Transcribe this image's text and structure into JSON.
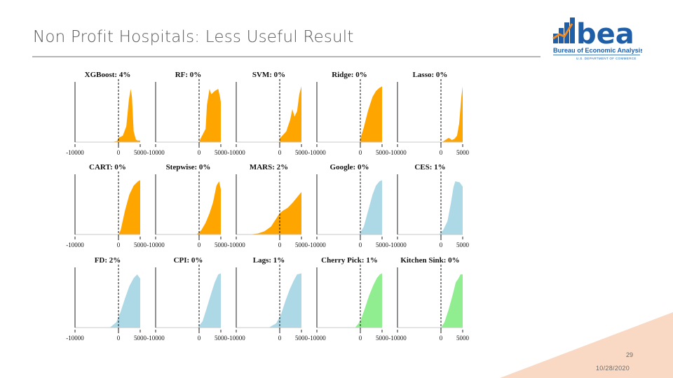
{
  "slide": {
    "title": "Non Profit Hospitals: Less Useful Result",
    "page_number": "29",
    "date": "10/28/2020"
  },
  "logo": {
    "wordmark": "bea",
    "name": "Bureau of Economic Analysis",
    "department": "U.S. DEPARTMENT OF COMMERCE"
  },
  "colors": {
    "orange": "#FFA500",
    "blue": "#ADD8E6",
    "green": "#90EE90",
    "brand_blue": "#1f5fa8",
    "brand_orange": "#f08a24",
    "corner": "#f9d9c4"
  },
  "chart_data": {
    "type": "area",
    "layout": "3 rows x 5 columns of density plots",
    "xlim": [
      -10000,
      5000
    ],
    "xticks": [
      -10000,
      0,
      5000
    ],
    "reference_line_x": 0,
    "panels": [
      {
        "method": "XGBoost",
        "title": "XGBoost: 4%",
        "color": "orange",
        "x": [
          -10000,
          -1500,
          -300,
          0,
          1000,
          1800,
          2400,
          2800,
          3100,
          3500,
          4000,
          4400,
          5000
        ],
        "y": [
          0,
          0,
          0.02,
          0.08,
          0.12,
          0.3,
          0.8,
          1.0,
          0.85,
          0.2,
          0.05,
          0.03,
          0.03
        ]
      },
      {
        "method": "RF",
        "title": "RF: 0%",
        "color": "orange",
        "x": [
          -10000,
          0,
          300,
          1500,
          1800,
          2400,
          2800,
          3600,
          4400,
          4800,
          5000
        ],
        "y": [
          0,
          0,
          0.06,
          0.25,
          0.7,
          1.0,
          0.9,
          0.96,
          1.0,
          0.85,
          0.75
        ]
      },
      {
        "method": "SVM",
        "title": "SVM: 0%",
        "color": "orange",
        "x": [
          -10000,
          -100,
          0,
          700,
          1500,
          2400,
          2900,
          3400,
          4000,
          4500,
          5000
        ],
        "y": [
          0,
          0,
          0.07,
          0.13,
          0.2,
          0.42,
          0.62,
          0.48,
          0.58,
          0.9,
          1.05
        ]
      },
      {
        "method": "Ridge",
        "title": "Ridge: 0%",
        "color": "orange",
        "x": [
          -10000,
          -200,
          0,
          800,
          1800,
          2800,
          3600,
          4400,
          5000
        ],
        "y": [
          0,
          0,
          0.06,
          0.28,
          0.6,
          0.85,
          0.96,
          1.02,
          1.05
        ]
      },
      {
        "method": "Lasso",
        "title": "Lasso: 0%",
        "color": "orange",
        "x": [
          -10000,
          300,
          1000,
          1800,
          2500,
          3100,
          3700,
          4200,
          4700,
          5000
        ],
        "y": [
          0,
          0,
          0.04,
          0.08,
          0.04,
          0.06,
          0.12,
          0.35,
          0.85,
          1.05
        ]
      },
      {
        "method": "CART",
        "title": "CART: 0%",
        "color": "orange",
        "x": [
          -10000,
          0,
          500,
          1500,
          2500,
          3500,
          4500,
          5000
        ],
        "y": [
          0,
          0,
          0.08,
          0.45,
          0.75,
          0.92,
          1.0,
          1.02
        ]
      },
      {
        "method": "Stepwise",
        "title": "Stepwise: 0%",
        "color": "orange",
        "x": [
          -10000,
          -600,
          500,
          1500,
          2400,
          3200,
          4000,
          4600,
          5000
        ],
        "y": [
          0,
          0,
          0.08,
          0.22,
          0.4,
          0.6,
          0.92,
          1.0,
          0.85
        ]
      },
      {
        "method": "MARS",
        "title": "MARS: 2%",
        "color": "orange",
        "x": [
          -10000,
          -7000,
          -5000,
          -3500,
          -2000,
          -800,
          0,
          800,
          1800,
          3000,
          4200,
          5000
        ],
        "y": [
          0,
          0,
          0.02,
          0.06,
          0.15,
          0.3,
          0.4,
          0.45,
          0.5,
          0.6,
          0.72,
          0.8
        ]
      },
      {
        "method": "Google",
        "title": "Google: 0%",
        "color": "blue",
        "x": [
          -10000,
          -300,
          800,
          1800,
          2800,
          3600,
          4400,
          5000
        ],
        "y": [
          0,
          0,
          0.15,
          0.45,
          0.75,
          0.92,
          1.0,
          1.02
        ]
      },
      {
        "method": "CES",
        "title": "CES: 1%",
        "color": "blue",
        "x": [
          -10000,
          -500,
          500,
          1500,
          2300,
          2900,
          3300,
          4300,
          5000
        ],
        "y": [
          0,
          0,
          0.08,
          0.25,
          0.6,
          0.9,
          1.0,
          0.98,
          0.9
        ]
      },
      {
        "method": "FD",
        "title": "FD: 2%",
        "color": "blue",
        "x": [
          -10000,
          -2000,
          -500,
          500,
          1500,
          2500,
          3500,
          4300,
          5000
        ],
        "y": [
          0,
          0,
          0.1,
          0.3,
          0.55,
          0.78,
          0.93,
          1.0,
          0.92
        ]
      },
      {
        "method": "CPI",
        "title": "CPI: 0%",
        "color": "blue",
        "x": [
          -10000,
          -300,
          800,
          1800,
          2800,
          3600,
          4400,
          5000
        ],
        "y": [
          0,
          0,
          0.12,
          0.38,
          0.65,
          0.85,
          1.0,
          1.02
        ]
      },
      {
        "method": "Lags",
        "title": "Lags: 1%",
        "color": "blue",
        "x": [
          -10000,
          -2500,
          -800,
          300,
          1300,
          2300,
          3200,
          4000,
          5000
        ],
        "y": [
          0,
          0,
          0.08,
          0.25,
          0.5,
          0.72,
          0.88,
          1.0,
          1.02
        ]
      },
      {
        "method": "Cherry Pick",
        "title": "Cherry Pick: 1%",
        "color": "green",
        "x": [
          -10000,
          -1200,
          0,
          1000,
          2000,
          3000,
          3800,
          4500,
          5000
        ],
        "y": [
          0,
          0,
          0.12,
          0.35,
          0.6,
          0.8,
          0.93,
          1.0,
          1.02
        ]
      },
      {
        "method": "Kitchen Sink",
        "title": "Kitchen Sink: 0%",
        "color": "green",
        "x": [
          -10000,
          0,
          800,
          1800,
          2800,
          3400,
          4000,
          4500,
          5000
        ],
        "y": [
          0,
          0,
          0.1,
          0.35,
          0.65,
          0.85,
          0.92,
          1.0,
          1.0
        ]
      }
    ]
  }
}
